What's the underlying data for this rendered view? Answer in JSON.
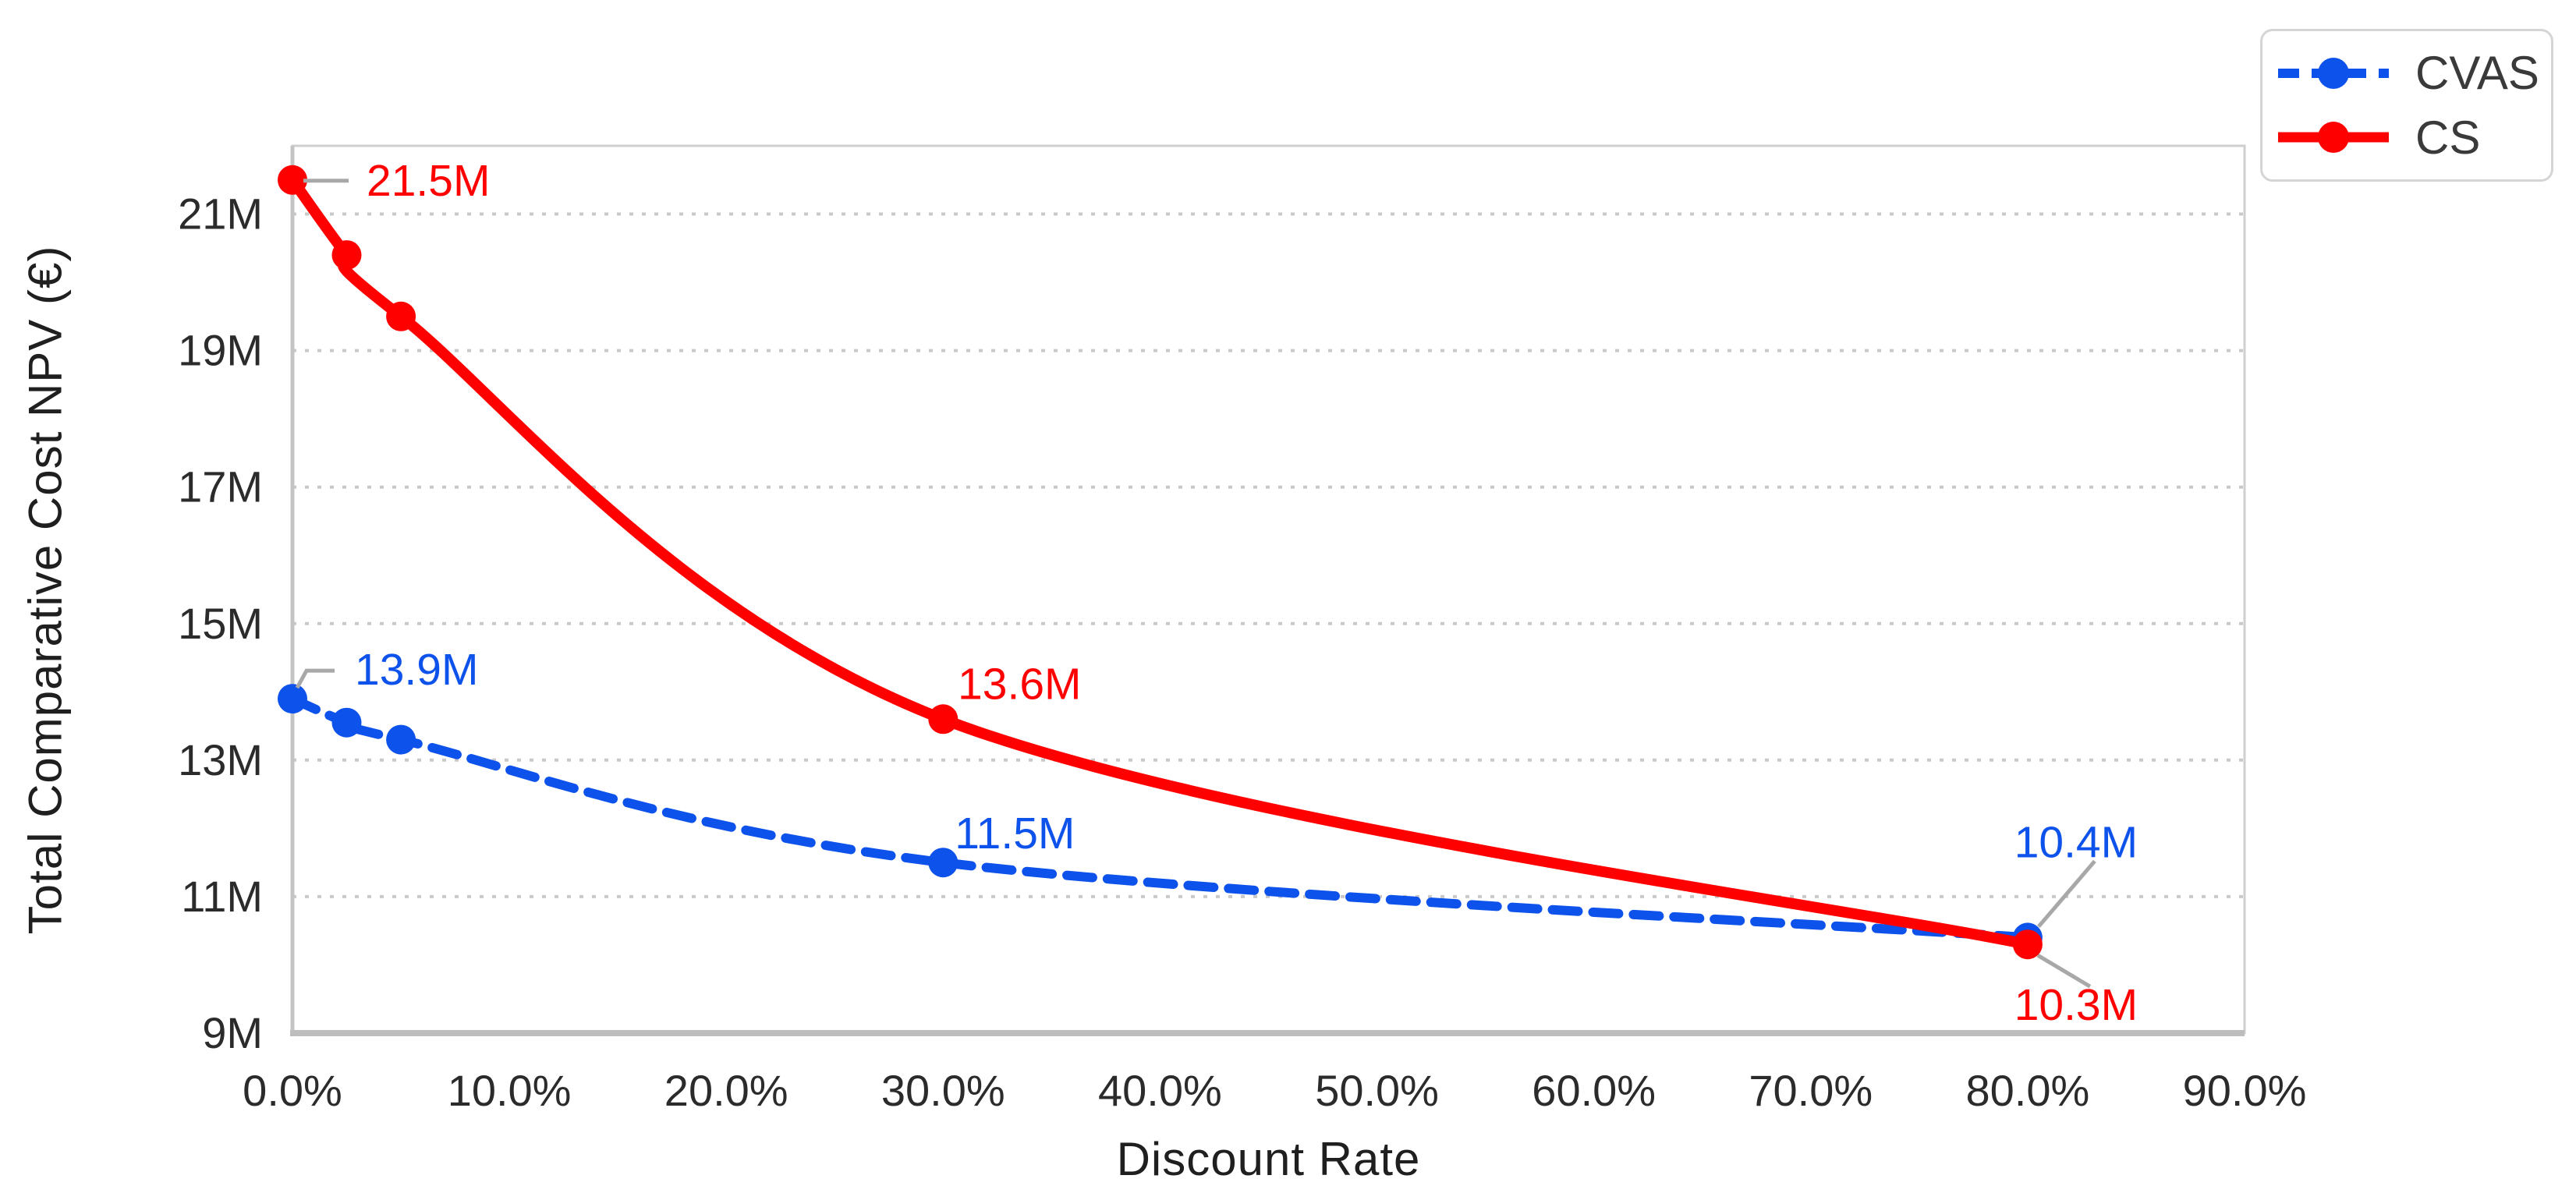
{
  "chart_data": {
    "type": "line",
    "title": "",
    "xlabel": "Discount Rate",
    "ylabel": "Total Comparative Cost NPV (€)",
    "xlim_percent": [
      0,
      90
    ],
    "ylim_millions": [
      9,
      22
    ],
    "grid": "horizontal-dotted",
    "legend_position": "top-right",
    "x_tick_labels": [
      "0.0%",
      "10.0%",
      "20.0%",
      "30.0%",
      "40.0%",
      "50.0%",
      "60.0%",
      "70.0%",
      "80.0%",
      "90.0%"
    ],
    "x_tick_values_percent": [
      0,
      10,
      20,
      30,
      40,
      50,
      60,
      70,
      80,
      90
    ],
    "y_tick_labels": [
      "9M",
      "11M",
      "13M",
      "15M",
      "17M",
      "19M",
      "21M"
    ],
    "y_tick_values_millions": [
      9,
      11,
      13,
      15,
      17,
      19,
      21
    ],
    "series": [
      {
        "name": "CVAS",
        "color": "#0e52ec",
        "line_style": "dashed",
        "marker": "circle",
        "x_percent": [
          0,
          2.5,
          5,
          30,
          80
        ],
        "npv_millions": [
          13.9,
          13.55,
          13.3,
          11.5,
          10.4
        ]
      },
      {
        "name": "CS",
        "color": "#ff0000",
        "line_style": "solid",
        "marker": "circle",
        "x_percent": [
          0,
          2.5,
          5,
          30,
          80
        ],
        "npv_millions": [
          21.5,
          20.4,
          19.5,
          13.6,
          10.3
        ]
      }
    ],
    "annotations": [
      {
        "series": "CS",
        "point_index": 0,
        "text": "21.5M",
        "placement": "right-of-point",
        "leader": true
      },
      {
        "series": "CVAS",
        "point_index": 0,
        "text": "13.9M",
        "placement": "above-right-bent",
        "leader": true
      },
      {
        "series": "CS",
        "point_index": 3,
        "text": "13.6M",
        "placement": "above-right",
        "leader": false
      },
      {
        "series": "CVAS",
        "point_index": 3,
        "text": "11.5M",
        "placement": "above-right-near",
        "leader": false
      },
      {
        "series": "CVAS",
        "point_index": 4,
        "text": "10.4M",
        "placement": "above-far",
        "leader": true
      },
      {
        "series": "CS",
        "point_index": 4,
        "text": "10.3M",
        "placement": "below-point",
        "leader": true
      }
    ],
    "colors": {
      "grid": "#c9c9c9",
      "plot_border": "#cfcfcf",
      "axis_line": "#bdbdbd",
      "leader_line": "#a8a8a8",
      "tick_text": "#2b2b2b",
      "axis_title_text": "#1f1f1f",
      "legend_text": "#3a3a3a"
    }
  }
}
